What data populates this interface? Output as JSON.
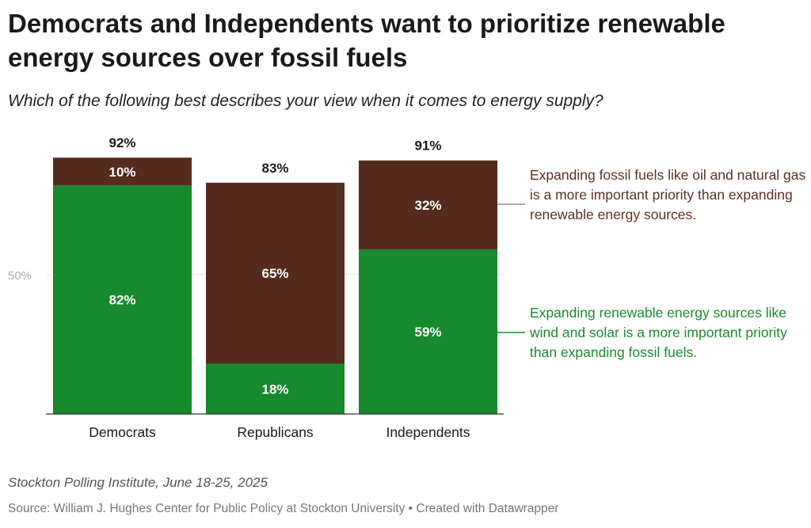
{
  "header": {
    "title": "Democrats and Independents want to prioritize renewable energy sources over fossil fuels",
    "subtitle": "Which of the following best describes your view when it comes to energy supply?"
  },
  "footer": {
    "note": "Stockton Polling Institute, June 18-25, 2025",
    "source": "Source: William J. Hughes Center for Public Policy at Stockton University • Created with Datawrapper"
  },
  "colors": {
    "renewable": "#168a2c",
    "fossil": "#542b1d",
    "renewable_text": "#1b8a2e",
    "fossil_text": "#5a3224",
    "grid": "#e2e2e2",
    "axis": "#333333",
    "tick_text": "#aaaaaa"
  },
  "chart_data": {
    "type": "bar",
    "stacked": true,
    "categories": [
      "Democrats",
      "Republicans",
      "Independents"
    ],
    "series": [
      {
        "name": "Expanding renewable energy sources like wind and solar is a more important priority than expanding fossil fuels.",
        "values": [
          82,
          18,
          59
        ],
        "labels": [
          "82%",
          "18%",
          "59%"
        ],
        "color": "#168a2c"
      },
      {
        "name": "Expanding fossil fuels like oil and natural gas is a more important priority than expanding renewable energy sources.",
        "values": [
          10,
          65,
          32
        ],
        "labels": [
          "10%",
          "65%",
          "32%"
        ],
        "color": "#542b1d"
      }
    ],
    "totals": [
      92,
      83,
      91
    ],
    "total_labels": [
      "92%",
      "83%",
      "91%"
    ],
    "y_ticks": [
      {
        "value": 50,
        "label": "50%"
      }
    ],
    "ylim": [
      0,
      100
    ],
    "grid": true,
    "legend": "right"
  }
}
